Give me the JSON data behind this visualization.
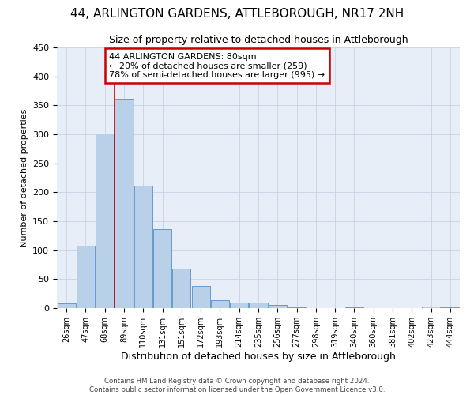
{
  "title_line1": "44, ARLINGTON GARDENS, ATTLEBOROUGH, NR17 2NH",
  "title_line2": "Size of property relative to detached houses in Attleborough",
  "xlabel": "Distribution of detached houses by size in Attleborough",
  "ylabel": "Number of detached properties",
  "categories": [
    "26sqm",
    "47sqm",
    "68sqm",
    "89sqm",
    "110sqm",
    "131sqm",
    "151sqm",
    "172sqm",
    "193sqm",
    "214sqm",
    "235sqm",
    "256sqm",
    "277sqm",
    "298sqm",
    "319sqm",
    "340sqm",
    "360sqm",
    "381sqm",
    "402sqm",
    "423sqm",
    "444sqm"
  ],
  "values": [
    8,
    108,
    301,
    362,
    212,
    136,
    68,
    38,
    13,
    10,
    9,
    6,
    2,
    0,
    0,
    2,
    0,
    0,
    0,
    3,
    2
  ],
  "bar_color": "#b8d0e8",
  "bar_edge_color": "#6699cc",
  "grid_color": "#c8d4e4",
  "annotation_box_color": "#cc0000",
  "vline_color": "#cc0000",
  "vline_x_index": 2.5,
  "annotation_title": "44 ARLINGTON GARDENS: 80sqm",
  "annotation_line1": "← 20% of detached houses are smaller (259)",
  "annotation_line2": "78% of semi-detached houses are larger (995) →",
  "ylim": [
    0,
    450
  ],
  "yticks": [
    0,
    50,
    100,
    150,
    200,
    250,
    300,
    350,
    400,
    450
  ],
  "footer_line1": "Contains HM Land Registry data © Crown copyright and database right 2024.",
  "footer_line2": "Contains public sector information licensed under the Open Government Licence v3.0.",
  "bg_color": "#e8eef8"
}
